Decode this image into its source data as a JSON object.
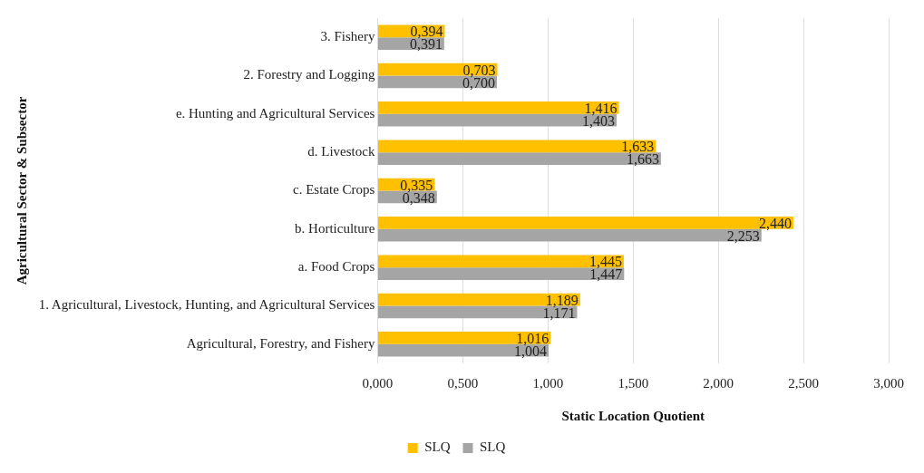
{
  "chart_data": {
    "type": "bar",
    "orientation": "horizontal",
    "xlabel": "Static Location Quotient",
    "ylabel": "Agricultural Sector & Subsector",
    "categories": [
      "3. Fishery",
      "2. Forestry and Logging",
      "e. Hunting and Agricultural Services",
      "d. Livestock",
      "c. Estate Crops",
      "b. Horticulture",
      "a. Food Crops",
      "1. Agricultural, Livestock, Hunting, and Agricultural Services",
      "Agricultural, Forestry, and Fishery"
    ],
    "series": [
      {
        "name": "SLQ",
        "color": "#ffc000",
        "values": [
          0.394,
          0.703,
          1.416,
          1.633,
          0.335,
          2.44,
          1.445,
          1.189,
          1.016
        ],
        "value_labels": [
          "0,394",
          "0,703",
          "1,416",
          "1,633",
          "0,335",
          "2,440",
          "1,445",
          "1,189",
          "1,016"
        ]
      },
      {
        "name": "SLQ",
        "color": "#a5a5a5",
        "values": [
          0.391,
          0.7,
          1.403,
          1.663,
          0.348,
          2.253,
          1.447,
          1.171,
          1.004
        ],
        "value_labels": [
          "0,391",
          "0,700",
          "1,403",
          "1,663",
          "0,348",
          "2,253",
          "1,447",
          "1,171",
          "1,004"
        ]
      }
    ],
    "xlim": [
      0,
      3
    ],
    "xticks": [
      {
        "value": 0,
        "label": "0,000"
      },
      {
        "value": 0.5,
        "label": "0,500"
      },
      {
        "value": 1,
        "label": "1,000"
      },
      {
        "value": 1.5,
        "label": "1,500"
      },
      {
        "value": 2,
        "label": "2,000"
      },
      {
        "value": 2.5,
        "label": "2,500"
      },
      {
        "value": 3,
        "label": "3,000"
      }
    ],
    "grid": "x",
    "legend": "bottom"
  }
}
